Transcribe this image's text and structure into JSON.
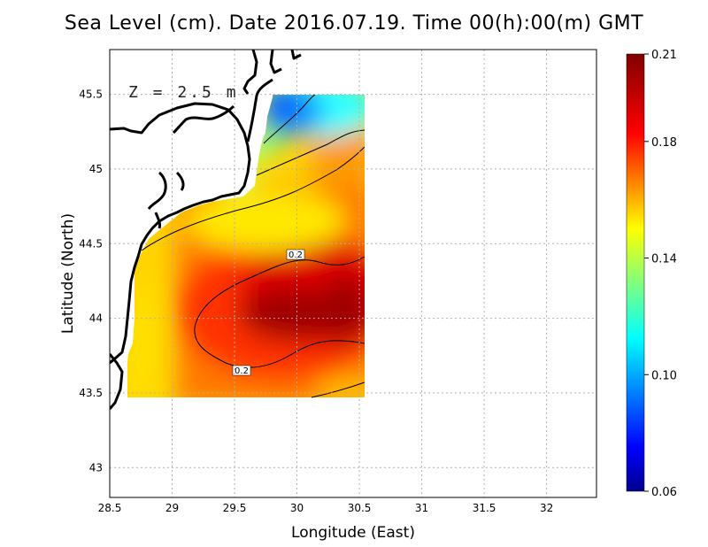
{
  "title": "Sea Level (cm). Date 2016.07.19. Time 00(h):00(m) GMT",
  "depth_label": "Z = 2.5 m",
  "chart_data": {
    "type": "heatmap",
    "xlabel": "Longitude (East)",
    "ylabel": "Latitude (North)",
    "xlim": [
      28.5,
      32.4
    ],
    "ylim": [
      42.8,
      45.8
    ],
    "x_ticks": [
      "28.5",
      "29",
      "29.5",
      "30",
      "30.5",
      "31",
      "31.5",
      "32"
    ],
    "y_ticks": [
      "43",
      "43.5",
      "44",
      "44.5",
      "45",
      "45.5"
    ],
    "grid": true,
    "data_extent": {
      "lon": [
        28.65,
        30.55
      ],
      "lat": [
        43.48,
        45.5
      ]
    },
    "contour_labels": [
      "0.2",
      "0.2"
    ],
    "colorbar": {
      "min": 0.06,
      "max": 0.21,
      "tick_labels": [
        "0.21",
        "0.18",
        "0.14",
        "0.10",
        "0.06"
      ],
      "colors": [
        "#00008f",
        "#0000ff",
        "#00ffff",
        "#ffff00",
        "#ff0000",
        "#800000"
      ]
    },
    "field_description": "max ~0.21 near (29.9E, 44.0N); ~0.19-0.20 SE; ~0.16 along coast; ~0.08-0.12 NE corner"
  },
  "colors": {
    "land_line": "#000000",
    "grid": "#b0b0b0"
  }
}
